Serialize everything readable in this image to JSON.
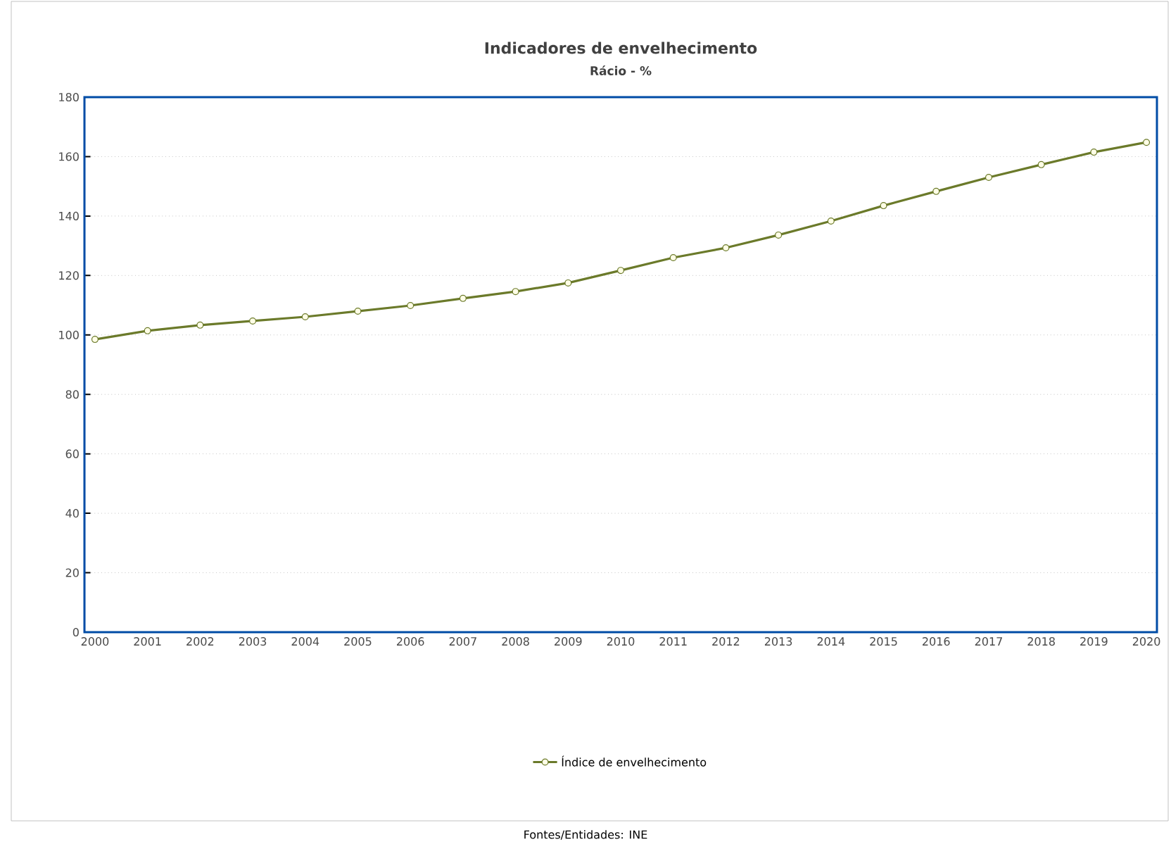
{
  "chart_data": {
    "type": "line",
    "title": "Indicadores de envelhecimento",
    "subtitle": "Rácio - %",
    "categories": [
      "2000",
      "2001",
      "2002",
      "2003",
      "2004",
      "2005",
      "2006",
      "2007",
      "2008",
      "2009",
      "2010",
      "2011",
      "2012",
      "2013",
      "2014",
      "2015",
      "2016",
      "2017",
      "2018",
      "2019",
      "2020"
    ],
    "series": [
      {
        "name": "Índice de envelhecimento",
        "color": "#6b7a2a",
        "values": [
          98.5,
          101.4,
          103.3,
          104.7,
          106.1,
          108.0,
          109.9,
          112.3,
          114.6,
          117.5,
          121.7,
          126.0,
          129.3,
          133.6,
          138.3,
          143.5,
          148.3,
          153.0,
          157.3,
          161.5,
          164.8
        ]
      }
    ],
    "ylim": [
      0,
      180
    ],
    "yticks": [
      0,
      20,
      40,
      60,
      80,
      100,
      120,
      140,
      160,
      180
    ],
    "grid": "y",
    "legend": "bottom",
    "marker": "circle",
    "line_style": "solid",
    "annotations": [
      "Fontes/Entidades: INE"
    ]
  }
}
